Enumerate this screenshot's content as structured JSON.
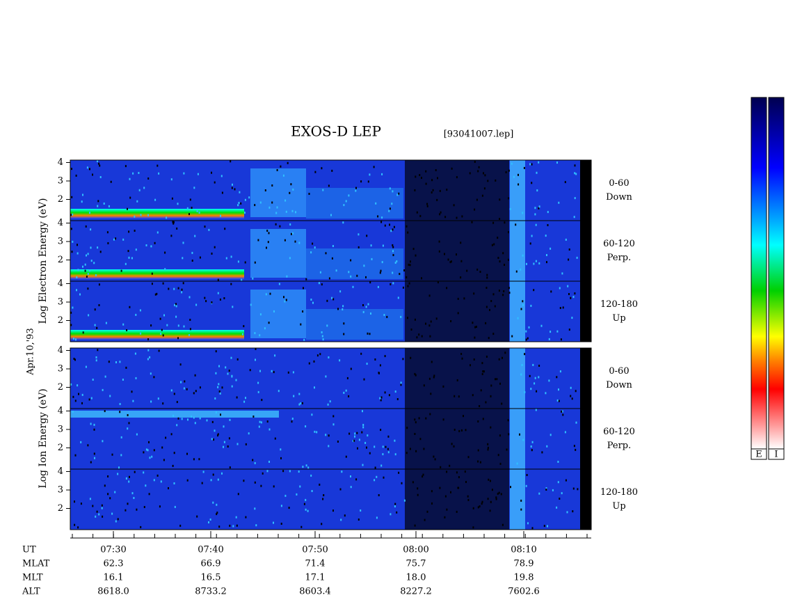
{
  "title": "EXOS-D LEP",
  "file": "[93041007.lep]",
  "date_label": "Apr.10,'93",
  "electron_axis_label": "Log   Electron   Energy (eV)",
  "ion_axis_label": "Log   Ion   Energy (eV)",
  "yticks": [
    2,
    3,
    4
  ],
  "electron_panels": [
    {
      "angle": "0-60",
      "dir": "Down"
    },
    {
      "angle": "60-120",
      "dir": "Perp."
    },
    {
      "angle": "120-180",
      "dir": "Up"
    }
  ],
  "ion_panels": [
    {
      "angle": "0-60",
      "dir": "Down"
    },
    {
      "angle": "60-120",
      "dir": "Perp."
    },
    {
      "angle": "120-180",
      "dir": "Up"
    }
  ],
  "rows": [
    {
      "label": "UT",
      "values": [
        "07:30",
        "07:40",
        "07:50",
        "08:00",
        "08:10"
      ]
    },
    {
      "label": "MLAT",
      "values": [
        "62.3",
        "66.9",
        "71.4",
        "75.7",
        "78.9"
      ]
    },
    {
      "label": "MLT",
      "values": [
        "16.1",
        "16.5",
        "17.1",
        "18.0",
        "19.8"
      ]
    },
    {
      "label": "ALT",
      "values": [
        "8618.0",
        "8733.2",
        "8603.4",
        "8227.2",
        "7602.6"
      ]
    }
  ],
  "colorbar_labels": [
    "E",
    "I"
  ]
}
